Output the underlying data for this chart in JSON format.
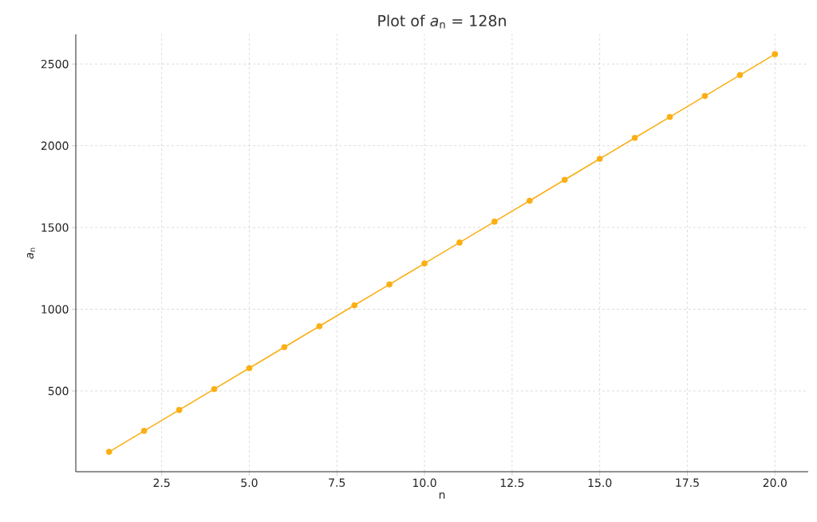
{
  "chart_data": {
    "type": "line",
    "title": "Plot of *a*$_{n}$ = 128n",
    "xlabel": "n",
    "ylabel": "*a*$_{n}$",
    "x": [
      1,
      2,
      3,
      4,
      5,
      6,
      7,
      8,
      9,
      10,
      11,
      12,
      13,
      14,
      15,
      16,
      17,
      18,
      19,
      20
    ],
    "values": [
      128,
      256,
      384,
      512,
      640,
      768,
      896,
      1024,
      1152,
      1280,
      1408,
      1536,
      1664,
      1792,
      1920,
      2048,
      2176,
      2304,
      2432,
      2560
    ],
    "color": "#fbaf14",
    "marker": "circle",
    "line_style": "solid",
    "grid": true,
    "xlim": [
      0.05,
      20.95
    ],
    "ylim": [
      6.4,
      2681.6
    ],
    "xticks": [
      2.5,
      {
        "value": 5,
        "label": "5.0"
      },
      7.5,
      {
        "value": 10,
        "label": "10.0"
      },
      12.5,
      {
        "value": 15,
        "label": "15.0"
      },
      17.5,
      {
        "value": 20,
        "label": "20.0"
      }
    ],
    "yticks": [
      500,
      1000,
      1500,
      2000,
      2500
    ]
  }
}
